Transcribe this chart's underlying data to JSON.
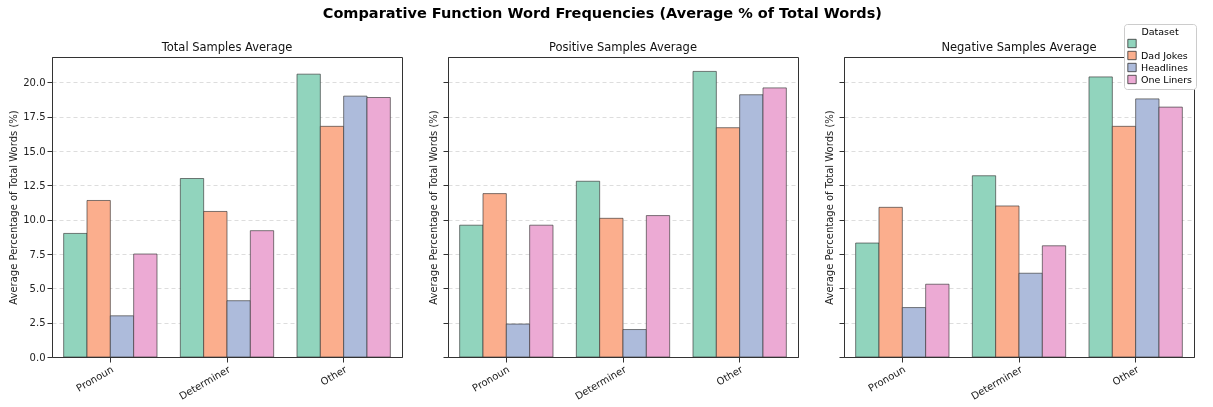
{
  "chart_data": [
    {
      "type": "bar",
      "title": "Comparative Function Word Frequencies (Average % of Total Words)",
      "subtitle": "Total Samples Average",
      "ylabel": "Average Percentage of Total Words (%)",
      "categories": [
        "Pronoun",
        "Determiner",
        "Other"
      ],
      "ylim": [
        0,
        21.85
      ],
      "yticks": [
        {
          "value": 0,
          "label": "0.0"
        },
        2.5,
        {
          "value": 5,
          "label": "5.0"
        },
        7.5,
        {
          "value": 10,
          "label": "10.0"
        },
        12.5,
        {
          "value": 15,
          "label": "15.0"
        },
        17.5,
        {
          "value": 20,
          "label": "20.0"
        }
      ],
      "grid": "y",
      "series": [
        {
          "color": "#91d4bd",
          "values": [
            9.0,
            13.0,
            20.6
          ]
        },
        {
          "color": "#fbae8d",
          "values": [
            11.4,
            10.6,
            16.8
          ]
        },
        {
          "color": "#adbbdb",
          "values": [
            3.0,
            4.1,
            19.0
          ]
        },
        {
          "color": "#ecaad4",
          "values": [
            7.5,
            9.2,
            18.9
          ]
        }
      ]
    },
    {
      "type": "bar",
      "subtitle": "Positive Samples Average",
      "ylabel": "Average Percentage of Total Words (%)",
      "categories": [
        "Pronoun",
        "Determiner",
        "Other"
      ],
      "ylim": [
        0,
        21.85
      ],
      "yticks": [
        0,
        2.5,
        5,
        7.5,
        10,
        12.5,
        15,
        17.5,
        20
      ],
      "grid": "y",
      "tick_labels": "x",
      "series": [
        {
          "color": "#91d4bd",
          "values": [
            9.6,
            12.8,
            20.8
          ]
        },
        {
          "color": "#fbae8d",
          "values": [
            11.9,
            10.1,
            16.7
          ]
        },
        {
          "color": "#adbbdb",
          "values": [
            2.4,
            2.0,
            19.1
          ]
        },
        {
          "color": "#ecaad4",
          "values": [
            9.6,
            10.3,
            19.6
          ]
        }
      ]
    },
    {
      "type": "bar",
      "subtitle": "Negative Samples Average",
      "ylabel": "Average Percentage of Total Words (%)",
      "categories": [
        "Pronoun",
        "Determiner",
        "Other"
      ],
      "ylim": [
        0,
        21.85
      ],
      "yticks": [
        0,
        2.5,
        5,
        7.5,
        10,
        12.5,
        15,
        17.5,
        20
      ],
      "grid": "y",
      "tick_labels": "x",
      "legend": "top right",
      "legend_title": "Dataset",
      "series": [
        {
          "color": "#91d4bd",
          "values": [
            8.3,
            13.2,
            20.4
          ]
        },
        {
          "name": "Dad Jokes",
          "color": "#fbae8d",
          "values": [
            10.9,
            11.0,
            16.8
          ]
        },
        {
          "name": "Headlines",
          "color": "#adbbdb",
          "values": [
            3.6,
            6.1,
            18.8
          ]
        },
        {
          "name": "One Liners",
          "color": "#ecaad4",
          "values": [
            5.3,
            8.1,
            18.2
          ]
        }
      ]
    }
  ]
}
